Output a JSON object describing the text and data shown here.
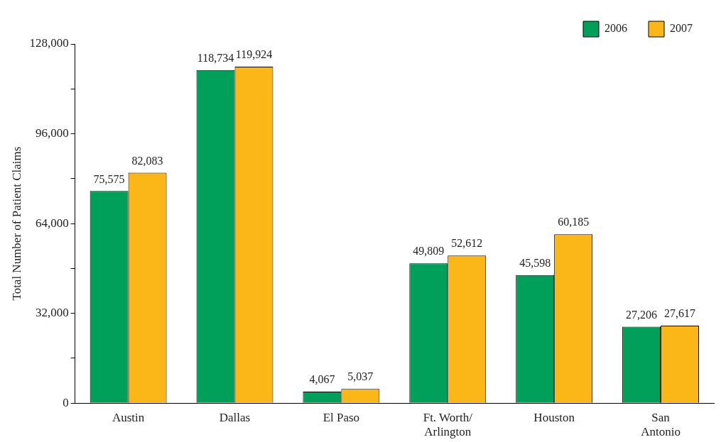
{
  "chart_data": {
    "type": "bar",
    "ylabel": "Total Number of Patient Claims",
    "categories": [
      "Austin",
      "Dallas",
      "El Paso",
      "Ft. Worth/\nArlington",
      "Houston",
      "San\nAntonio"
    ],
    "series": [
      {
        "name": "2006",
        "color": "#00a05a",
        "values": [
          75575,
          118734,
          4067,
          49809,
          45598,
          27206
        ],
        "value_labels": [
          "75,575",
          "118,734",
          "4,067",
          "49,809",
          "45,598",
          "27,206"
        ]
      },
      {
        "name": "2007",
        "color": "#fbb718",
        "values": [
          82083,
          119924,
          5037,
          52612,
          60185,
          27617
        ],
        "value_labels": [
          "82,083",
          "119,924",
          "5,037",
          "52,612",
          "60,185",
          "27,617"
        ]
      }
    ],
    "ylim": [
      0,
      128000
    ],
    "yticks": [
      0,
      {
        "value": 16000,
        "label": null
      },
      {
        "value": 32000,
        "label": "32,000"
      },
      {
        "value": 48000,
        "label": null
      },
      {
        "value": 64000,
        "label": "64,000"
      },
      {
        "value": 80000,
        "label": null
      },
      {
        "value": 96000,
        "label": "96,000"
      },
      {
        "value": 112000,
        "label": null
      },
      {
        "value": 128000,
        "label": "128,000"
      }
    ],
    "legend": "top right"
  }
}
